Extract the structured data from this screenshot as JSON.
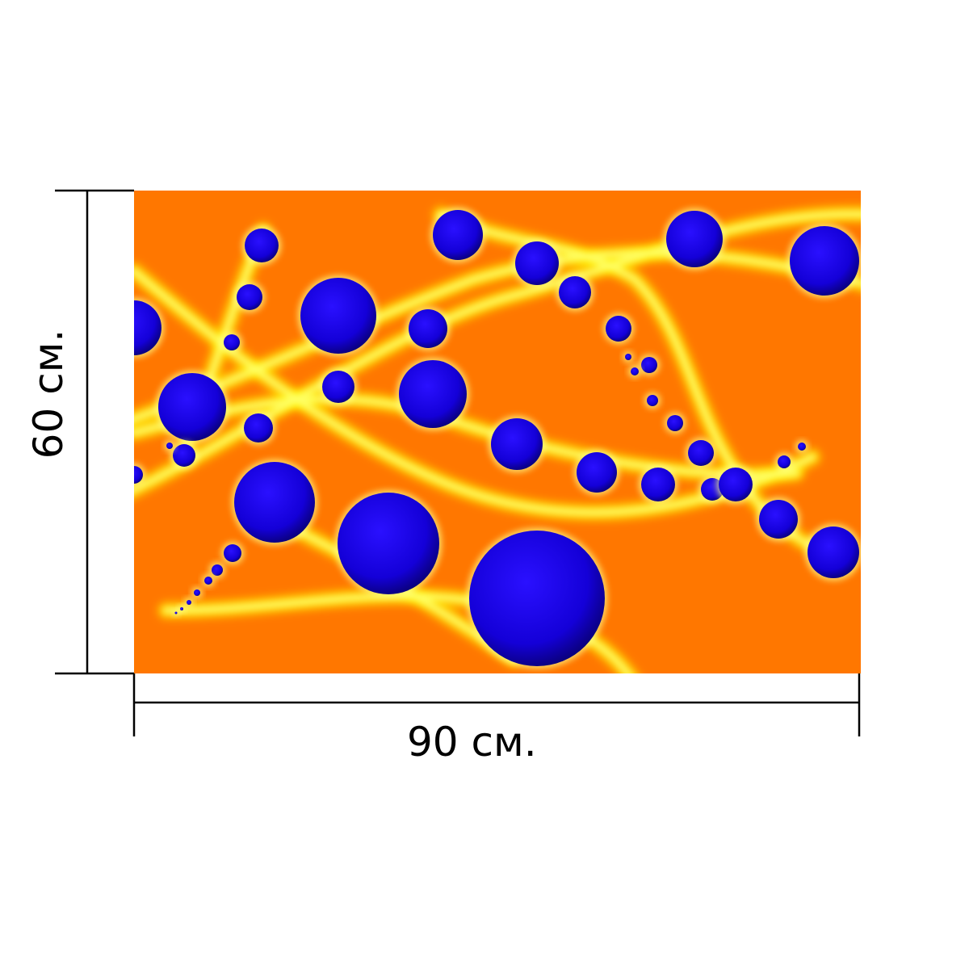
{
  "dimensions": {
    "width_label": "90 см.",
    "height_label": "60 см."
  },
  "artwork": {
    "background_color": "#ff7700",
    "ribbon_color": "#ffff00",
    "sphere_color": "#1500e0"
  }
}
